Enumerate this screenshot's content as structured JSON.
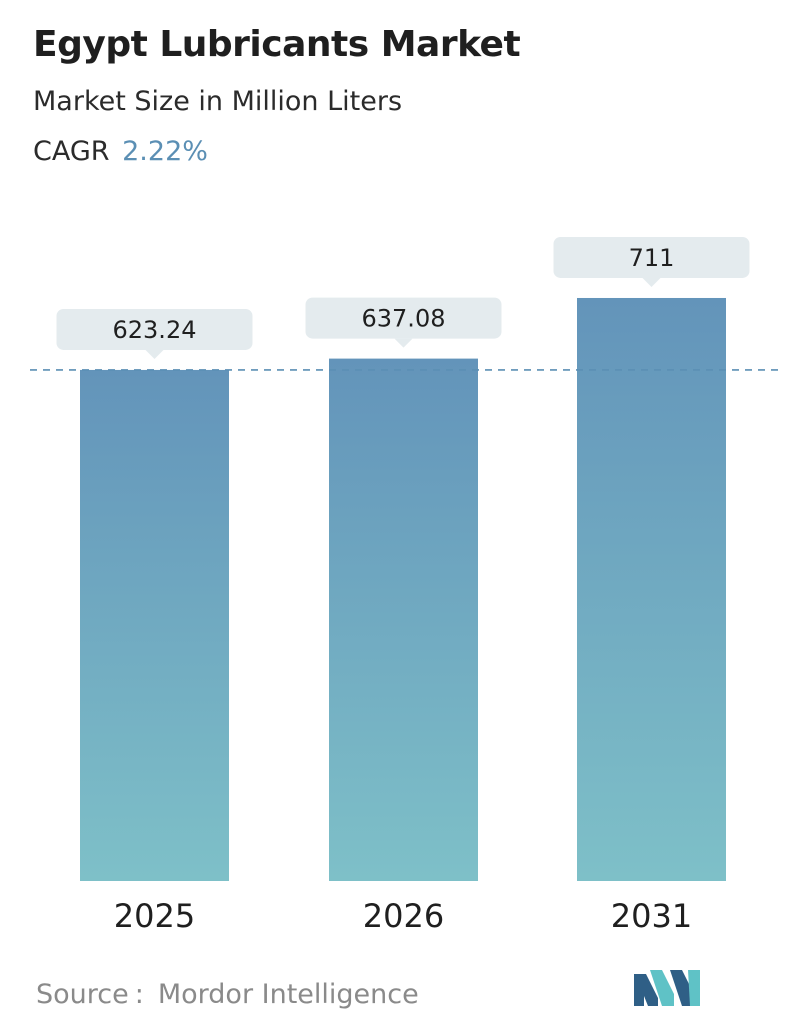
{
  "header": {
    "title": "Egypt Lubricants Market",
    "subtitle": "Market Size in Million Liters",
    "cagr_label": "CAGR",
    "cagr_value": "2.22%"
  },
  "footer": {
    "source_label": "Source",
    "source_colon": ":",
    "source_name": "Mordor Intelligence"
  },
  "colors": {
    "bar_top": "#6394ba",
    "bar_bottom": "#7ec0c8",
    "label_bg": "#e4ebee",
    "dashed_line": "#5b8fb4",
    "accent": "#5b8fb4",
    "logo_dark": "#2f5f86",
    "logo_light": "#5fc2c6"
  },
  "chart_data": {
    "type": "bar",
    "categories": [
      "2025",
      "2026",
      "2031"
    ],
    "values": [
      623.24,
      637.08,
      711
    ],
    "value_labels": [
      "623.24",
      "637.08",
      "711"
    ],
    "title": "Egypt Lubricants Market",
    "subtitle": "Market Size in Million Liters",
    "xlabel": "",
    "ylabel": "",
    "reference_line": 623.24,
    "grid": false,
    "legend": "none"
  }
}
